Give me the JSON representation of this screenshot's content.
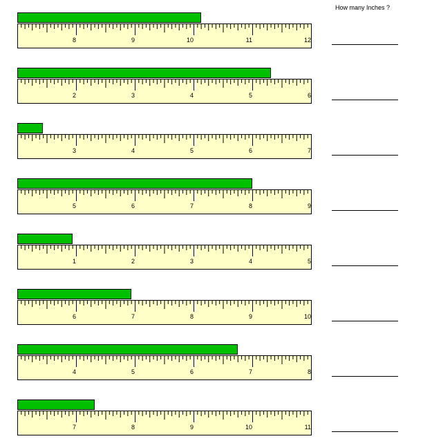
{
  "header": {
    "prompt": "How many Inches ?"
  },
  "problems": [
    {
      "start": 7,
      "labels": [
        "8",
        "9",
        "10",
        "11",
        "12"
      ],
      "bar_inches": 3.125,
      "answer": ""
    },
    {
      "start": 1,
      "labels": [
        "2",
        "3",
        "4",
        "5",
        "6"
      ],
      "bar_inches": 4.3125,
      "answer": ""
    },
    {
      "start": 2,
      "labels": [
        "3",
        "4",
        "5",
        "6",
        "7"
      ],
      "bar_inches": 0.4375,
      "answer": ""
    },
    {
      "start": 4,
      "labels": [
        "5",
        "6",
        "7",
        "8",
        "9"
      ],
      "bar_inches": 4.0,
      "answer": ""
    },
    {
      "start": 0,
      "labels": [
        "1",
        "2",
        "3",
        "4",
        "5"
      ],
      "bar_inches": 0.9375,
      "answer": ""
    },
    {
      "start": 5,
      "labels": [
        "6",
        "7",
        "8",
        "9",
        "10"
      ],
      "bar_inches": 1.9375,
      "answer": ""
    },
    {
      "start": 3,
      "labels": [
        "4",
        "5",
        "6",
        "7",
        "8"
      ],
      "bar_inches": 3.75,
      "answer": ""
    },
    {
      "start": 6,
      "labels": [
        "7",
        "8",
        "9",
        "10",
        "11"
      ],
      "bar_inches": 1.3125,
      "answer": ""
    }
  ],
  "colors": {
    "bar": "#00c000",
    "ruler": "#ffffc8",
    "ink": "#000000"
  }
}
